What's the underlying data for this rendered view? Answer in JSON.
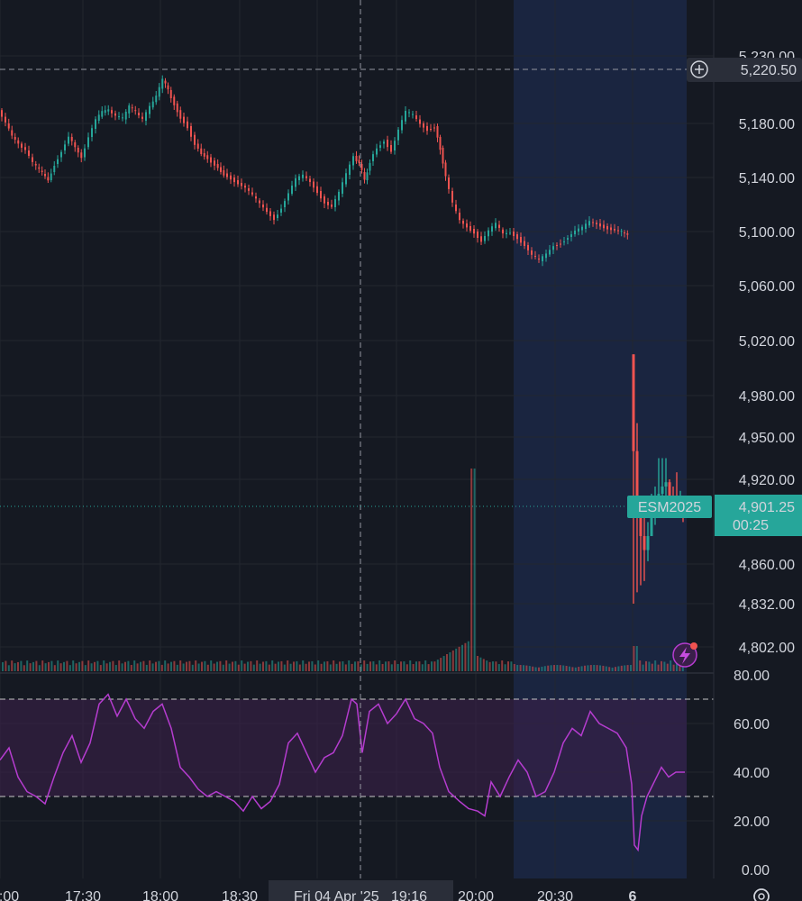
{
  "colors": {
    "background": "#151922",
    "grid": "#22262f",
    "up": "#26a69a",
    "down": "#ef5350",
    "session_shade": "#1a2540",
    "rsi_line": "#b53ccf",
    "rsi_band": "#3a1f4a",
    "price_badge": "#26a69a",
    "crosshair_label": "#2a2e39"
  },
  "crosshair": {
    "price_label": "5,220.50",
    "time_label": "Fri 04 Apr '25   19:16",
    "add_icon": "plus-circle-icon"
  },
  "last_price": {
    "symbol": "ESM2025",
    "price": "4,901.25",
    "countdown": "00:25"
  },
  "alert_icon": "lightning-icon",
  "settings_icon": "gear-icon",
  "chart_data": {
    "type": "candlestick",
    "price_axis": {
      "range": [
        4782,
        5232
      ],
      "ticks": [
        {
          "label": "5,230.00",
          "value": 5230
        },
        {
          "label": "5,220.50",
          "value": 5220.5
        },
        {
          "label": "5,180.00",
          "value": 5180
        },
        {
          "label": "5,140.00",
          "value": 5140
        },
        {
          "label": "5,100.00",
          "value": 5100
        },
        {
          "label": "5,060.00",
          "value": 5060
        },
        {
          "label": "5,020.00",
          "value": 5020
        },
        {
          "label": "4,980.00",
          "value": 4980
        },
        {
          "label": "4,950.00",
          "value": 4950
        },
        {
          "label": "4,920.00",
          "value": 4920
        },
        {
          "label": "4,860.00",
          "value": 4860
        },
        {
          "label": "4,832.00",
          "value": 4832
        },
        {
          "label": "4,802.00",
          "value": 4802
        }
      ]
    },
    "time_axis": {
      "ticks": [
        ":00",
        "17:30",
        "18:00",
        "18:30",
        "20:00",
        "20:30",
        "6"
      ]
    },
    "price_series": [
      [
        0,
        5190
      ],
      [
        8,
        5180
      ],
      [
        15,
        5170
      ],
      [
        22,
        5165
      ],
      [
        30,
        5160
      ],
      [
        38,
        5150
      ],
      [
        45,
        5145
      ],
      [
        55,
        5138
      ],
      [
        62,
        5150
      ],
      [
        70,
        5160
      ],
      [
        78,
        5170
      ],
      [
        85,
        5162
      ],
      [
        92,
        5155
      ],
      [
        100,
        5170
      ],
      [
        108,
        5182
      ],
      [
        115,
        5188
      ],
      [
        122,
        5190
      ],
      [
        130,
        5185
      ],
      [
        138,
        5183
      ],
      [
        145,
        5192
      ],
      [
        152,
        5188
      ],
      [
        160,
        5182
      ],
      [
        168,
        5192
      ],
      [
        175,
        5200
      ],
      [
        182,
        5212
      ],
      [
        188,
        5205
      ],
      [
        195,
        5195
      ],
      [
        202,
        5185
      ],
      [
        210,
        5178
      ],
      [
        218,
        5165
      ],
      [
        225,
        5158
      ],
      [
        232,
        5155
      ],
      [
        240,
        5150
      ],
      [
        250,
        5143
      ],
      [
        258,
        5140
      ],
      [
        266,
        5136
      ],
      [
        274,
        5132
      ],
      [
        282,
        5126
      ],
      [
        290,
        5120
      ],
      [
        298,
        5115
      ],
      [
        306,
        5110
      ],
      [
        314,
        5118
      ],
      [
        322,
        5128
      ],
      [
        330,
        5138
      ],
      [
        338,
        5141
      ],
      [
        346,
        5137
      ],
      [
        354,
        5130
      ],
      [
        362,
        5122
      ],
      [
        370,
        5118
      ],
      [
        378,
        5128
      ],
      [
        386,
        5142
      ],
      [
        394,
        5156
      ],
      [
        400,
        5150
      ],
      [
        406,
        5138
      ],
      [
        412,
        5152
      ],
      [
        420,
        5162
      ],
      [
        428,
        5168
      ],
      [
        436,
        5160
      ],
      [
        444,
        5175
      ],
      [
        452,
        5188
      ],
      [
        460,
        5186
      ],
      [
        468,
        5180
      ],
      [
        476,
        5176
      ],
      [
        484,
        5178
      ],
      [
        490,
        5162
      ],
      [
        496,
        5140
      ],
      [
        504,
        5120
      ],
      [
        512,
        5108
      ],
      [
        520,
        5104
      ],
      [
        528,
        5100
      ],
      [
        536,
        5093
      ],
      [
        544,
        5100
      ],
      [
        552,
        5105
      ],
      [
        560,
        5098
      ],
      [
        568,
        5100
      ],
      [
        576,
        5096
      ],
      [
        584,
        5090
      ],
      [
        592,
        5082
      ],
      [
        600,
        5078
      ],
      [
        608,
        5083
      ],
      [
        616,
        5090
      ],
      [
        624,
        5092
      ],
      [
        632,
        5096
      ],
      [
        640,
        5100
      ],
      [
        648,
        5102
      ],
      [
        656,
        5107
      ],
      [
        664,
        5106
      ],
      [
        672,
        5104
      ],
      [
        680,
        5102
      ],
      [
        688,
        5100
      ],
      [
        698,
        5098
      ]
    ],
    "gap_session": [
      {
        "x": 703,
        "high": 5010,
        "low": 4832,
        "value": 4940
      },
      {
        "x": 707,
        "high": 4960,
        "low": 4840,
        "value": 4905
      },
      {
        "x": 711,
        "high": 4900,
        "low": 4845,
        "value": 4880
      },
      {
        "x": 715,
        "high": 4895,
        "low": 4848,
        "value": 4870
      },
      {
        "x": 719,
        "high": 4890,
        "low": 4862,
        "value": 4880
      },
      {
        "x": 723,
        "high": 4910,
        "low": 4880,
        "value": 4895
      },
      {
        "x": 727,
        "high": 4915,
        "low": 4888,
        "value": 4900
      },
      {
        "x": 731,
        "high": 4935,
        "low": 4895,
        "value": 4910
      },
      {
        "x": 735,
        "high": 4935,
        "low": 4900,
        "value": 4915
      },
      {
        "x": 739,
        "high": 4935,
        "low": 4905,
        "value": 4918
      },
      {
        "x": 743,
        "high": 4920,
        "low": 4895,
        "value": 4905
      },
      {
        "x": 747,
        "high": 4915,
        "low": 4900,
        "value": 4903
      },
      {
        "x": 751,
        "high": 4925,
        "low": 4898,
        "value": 4902
      },
      {
        "x": 755,
        "high": 4912,
        "low": 4896,
        "value": 4903
      },
      {
        "x": 758,
        "high": 4905,
        "low": 4890,
        "value": 4901.25
      }
    ],
    "rsi": {
      "range": [
        0,
        80
      ],
      "ticks": [
        {
          "label": "80.00",
          "value": 80
        },
        {
          "label": "60.00",
          "value": 60
        },
        {
          "label": "40.00",
          "value": 40
        },
        {
          "label": "20.00",
          "value": 20
        },
        {
          "label": "0.00",
          "value": 0
        }
      ],
      "upper_band": 70,
      "lower_band": 30,
      "series": [
        [
          0,
          45
        ],
        [
          10,
          50
        ],
        [
          20,
          38
        ],
        [
          30,
          32
        ],
        [
          40,
          30
        ],
        [
          50,
          27
        ],
        [
          60,
          38
        ],
        [
          70,
          48
        ],
        [
          80,
          55
        ],
        [
          90,
          44
        ],
        [
          100,
          52
        ],
        [
          110,
          68
        ],
        [
          120,
          72
        ],
        [
          130,
          63
        ],
        [
          140,
          70
        ],
        [
          150,
          62
        ],
        [
          160,
          58
        ],
        [
          170,
          65
        ],
        [
          180,
          68
        ],
        [
          190,
          58
        ],
        [
          200,
          42
        ],
        [
          210,
          38
        ],
        [
          220,
          33
        ],
        [
          230,
          30
        ],
        [
          240,
          32
        ],
        [
          250,
          30
        ],
        [
          260,
          28
        ],
        [
          270,
          24
        ],
        [
          280,
          30
        ],
        [
          290,
          25
        ],
        [
          300,
          28
        ],
        [
          310,
          35
        ],
        [
          320,
          52
        ],
        [
          330,
          56
        ],
        [
          340,
          48
        ],
        [
          350,
          40
        ],
        [
          360,
          46
        ],
        [
          370,
          48
        ],
        [
          380,
          55
        ],
        [
          390,
          70
        ],
        [
          396,
          68
        ],
        [
          402,
          48
        ],
        [
          410,
          65
        ],
        [
          420,
          68
        ],
        [
          430,
          60
        ],
        [
          440,
          64
        ],
        [
          450,
          70
        ],
        [
          460,
          62
        ],
        [
          470,
          60
        ],
        [
          480,
          56
        ],
        [
          488,
          42
        ],
        [
          498,
          32
        ],
        [
          510,
          28
        ],
        [
          520,
          25
        ],
        [
          530,
          24
        ],
        [
          538,
          22
        ],
        [
          545,
          36
        ],
        [
          555,
          30
        ],
        [
          565,
          38
        ],
        [
          575,
          45
        ],
        [
          585,
          40
        ],
        [
          595,
          30
        ],
        [
          605,
          32
        ],
        [
          615,
          40
        ],
        [
          625,
          52
        ],
        [
          635,
          58
        ],
        [
          645,
          55
        ],
        [
          655,
          65
        ],
        [
          665,
          60
        ],
        [
          675,
          58
        ],
        [
          685,
          56
        ],
        [
          695,
          50
        ],
        [
          701,
          35
        ],
        [
          704,
          10
        ],
        [
          708,
          8
        ],
        [
          712,
          22
        ],
        [
          718,
          30
        ],
        [
          726,
          36
        ],
        [
          734,
          42
        ],
        [
          742,
          38
        ],
        [
          750,
          40
        ],
        [
          760,
          40
        ]
      ]
    }
  }
}
